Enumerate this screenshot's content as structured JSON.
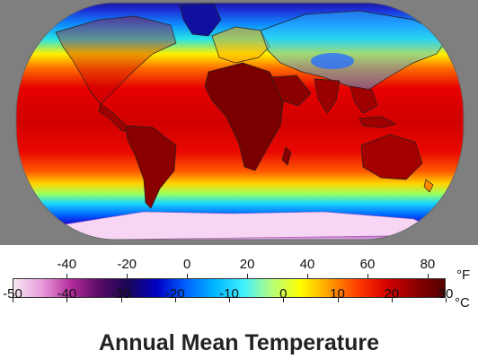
{
  "title": "Annual Mean Temperature",
  "map": {
    "projection": "robinson",
    "background_color": "#7f7f7f"
  },
  "legend": {
    "unit_f": "°F",
    "unit_c": "°C",
    "fahrenheit_ticks": [
      "-40",
      "-20",
      "0",
      "20",
      "40",
      "60",
      "80"
    ],
    "celsius_ticks": [
      "-50",
      "-40",
      "-30",
      "-20",
      "-10",
      "0",
      "10",
      "20",
      "30"
    ],
    "colormap": [
      "#f7e9f3",
      "#e79ad9",
      "#b42d9d",
      "#570a64",
      "#1a0658",
      "#0000c6",
      "#0062ff",
      "#00b6ff",
      "#40f0ff",
      "#b7ff7a",
      "#ffff00",
      "#ff9b00",
      "#ff3a00",
      "#d40000",
      "#8c0000",
      "#540000"
    ]
  }
}
